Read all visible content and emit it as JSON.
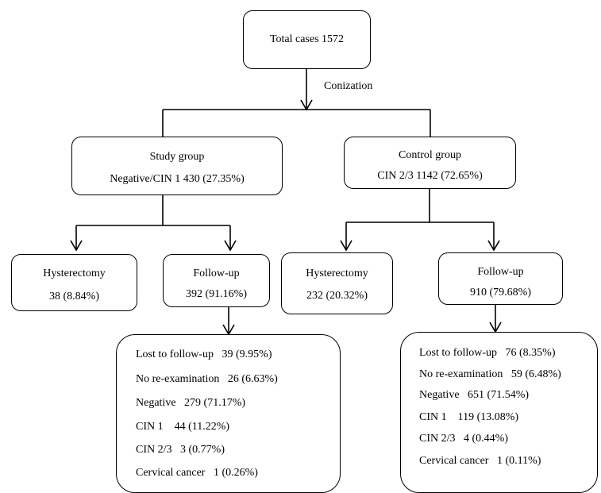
{
  "root": {
    "text": "Total cases 1572"
  },
  "edge_label": "Conization",
  "study": {
    "title": "Study group",
    "subtitle": "Negative/CIN 1 430 (27.35%)"
  },
  "control": {
    "title": "Control group",
    "subtitle": "CIN 2/3 1142 (72.65%)"
  },
  "study_hysterectomy": {
    "title": "Hysterectomy",
    "value": "38 (8.84%)"
  },
  "study_followup": {
    "title": "Follow-up",
    "value": "392 (91.16%)"
  },
  "control_hysterectomy": {
    "title": "Hysterectomy",
    "value": "232 (20.32%)"
  },
  "control_followup": {
    "title": "Follow-up",
    "value": "910 (79.68%)"
  },
  "study_outcomes": [
    {
      "label": "Lost to follow-up",
      "value": "39 (9.95%)"
    },
    {
      "label": "No re-examination",
      "value": "26 (6.63%)"
    },
    {
      "label": "Negative",
      "value": "279 (71.17%)"
    },
    {
      "label": "CIN 1",
      "value": "44 (11.22%)"
    },
    {
      "label": "CIN 2/3",
      "value": "3 (0.77%)"
    },
    {
      "label": "Cervical cancer",
      "value": "1 (0.26%)"
    }
  ],
  "control_outcomes": [
    {
      "label": "Lost to follow-up",
      "value": "76 (8.35%)"
    },
    {
      "label": "No re-examination",
      "value": "59 (6.48%)"
    },
    {
      "label": "Negative",
      "value": "651 (71.54%)"
    },
    {
      "label": "CIN 1",
      "value": "119 (13.08%)"
    },
    {
      "label": "CIN 2/3",
      "value": "4 (0.44%)"
    },
    {
      "label": "Cervical cancer",
      "value": "1 (0.11%)"
    }
  ]
}
